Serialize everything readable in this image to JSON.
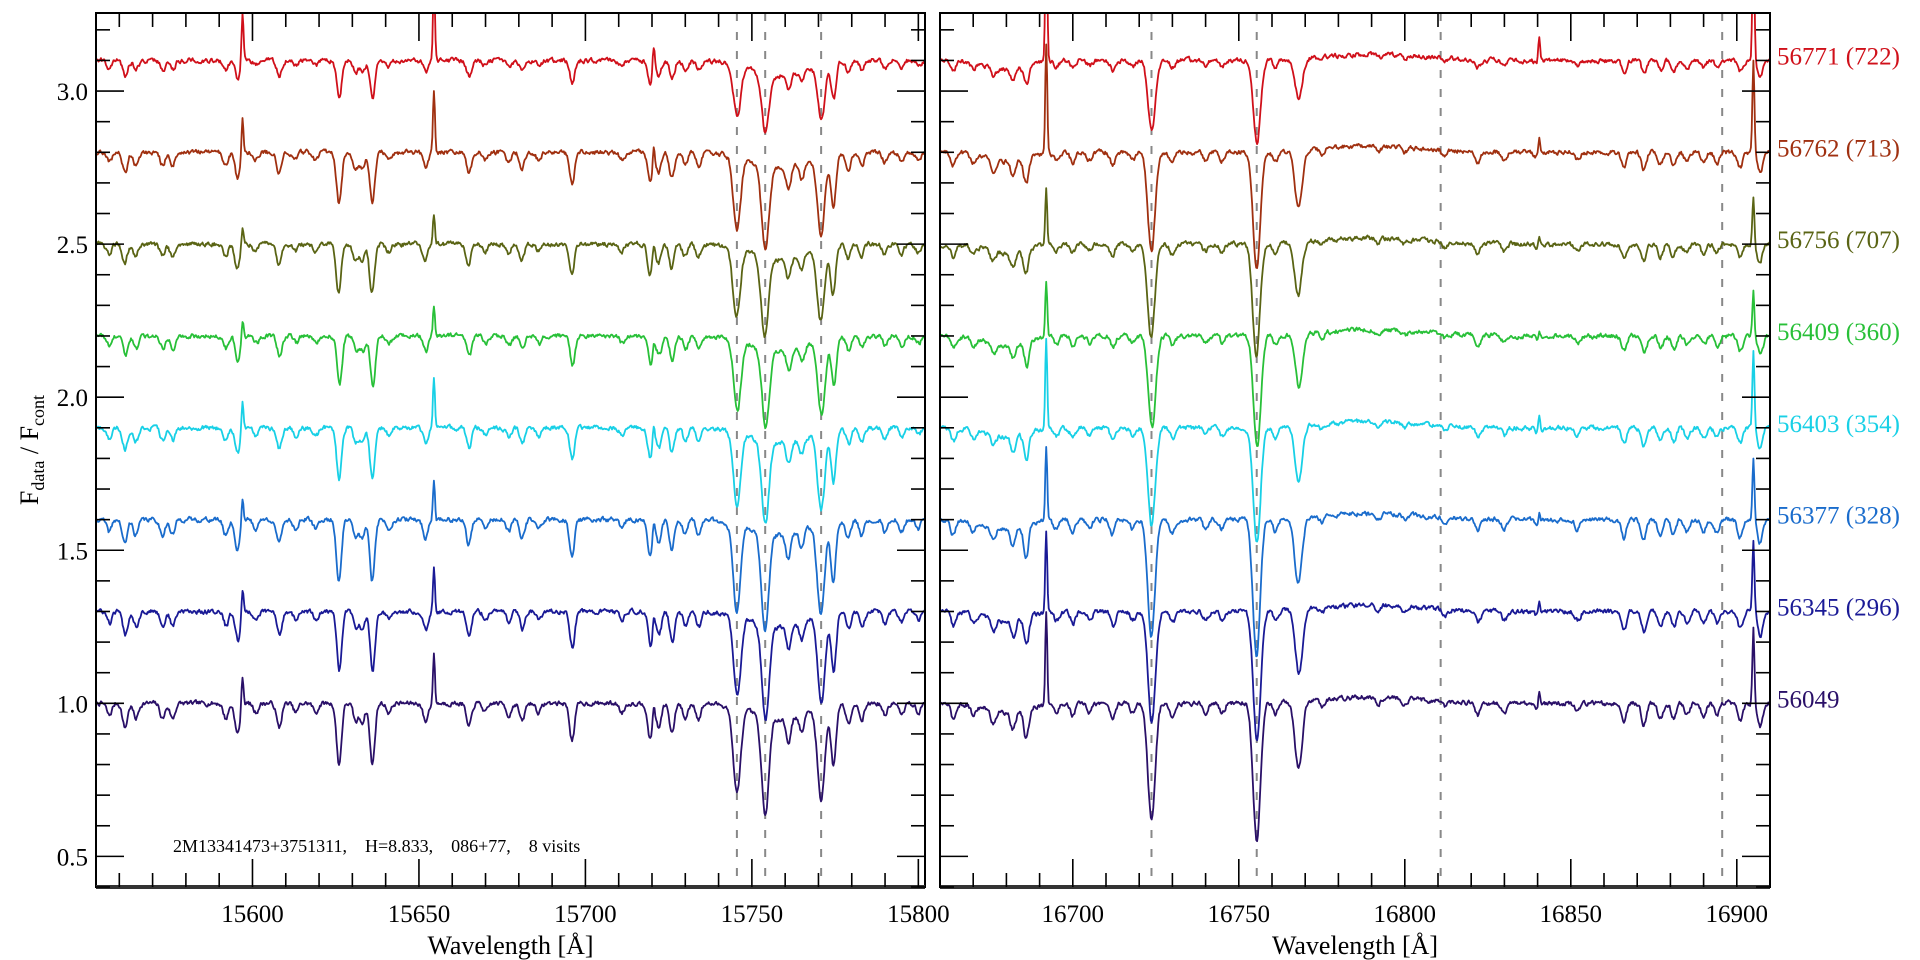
{
  "chart_data": {
    "type": "line",
    "ylabel_main": "F",
    "ylabel_sub1": "data",
    "ylabel_sep": " / F",
    "ylabel_sub2": "cont",
    "annotation": "2M13341473+3751311,    H=8.833,    086+77,    8 visits",
    "ylim": [
      0.4,
      3.255
    ],
    "y_ticks": [
      0.5,
      1.0,
      1.5,
      2.0,
      2.5,
      3.0
    ],
    "y_tick_labels": [
      "0.5",
      "1.0",
      "1.5",
      "2.0",
      "2.5",
      "3.0"
    ],
    "panels": [
      {
        "xlabel": "Wavelength [Å]",
        "xlim": [
          15553,
          15802
        ],
        "x_ticks": [
          15600,
          15650,
          15700,
          15750,
          15800
        ],
        "x_tick_labels": [
          "15600",
          "15650",
          "15700",
          "15750",
          "15800"
        ],
        "dashed_lines": [
          15745.5,
          15754,
          15770.8
        ],
        "absorption_lines": [
          [
            15557,
            0.04
          ],
          [
            15561.7,
            0.08
          ],
          [
            15565,
            0.05
          ],
          [
            15573,
            0.05
          ],
          [
            15576,
            0.05
          ],
          [
            15592,
            0.05
          ],
          [
            15595.5,
            0.1
          ],
          [
            15601,
            0.03
          ],
          [
            15608,
            0.08
          ],
          [
            15613,
            0.03
          ],
          [
            15619,
            0.03
          ],
          [
            15626,
            0.2
          ],
          [
            15631,
            0.06
          ],
          [
            15633,
            0.06
          ],
          [
            15636,
            0.2
          ],
          [
            15641,
            0.03
          ],
          [
            15652,
            0.06
          ],
          [
            15665,
            0.08
          ],
          [
            15670,
            0.03
          ],
          [
            15677,
            0.04
          ],
          [
            15681,
            0.06
          ],
          [
            15686,
            0.03
          ],
          [
            15696,
            0.12
          ],
          [
            15711,
            0.03
          ],
          [
            15719.5,
            0.12
          ],
          [
            15722,
            0.08
          ],
          [
            15726,
            0.1
          ],
          [
            15730,
            0.05
          ],
          [
            15734,
            0.05
          ],
          [
            15745.5,
            0.28
          ],
          [
            15754,
            0.32
          ],
          [
            15761,
            0.08
          ],
          [
            15765,
            0.06
          ],
          [
            15770.8,
            0.3
          ],
          [
            15774.5,
            0.2
          ],
          [
            15779,
            0.06
          ],
          [
            15783,
            0.05
          ],
          [
            15790,
            0.04
          ],
          [
            15795,
            0.04
          ],
          [
            15800,
            0.03
          ]
        ],
        "broad_features": [
          [
            15758,
            -0.05,
            8
          ]
        ],
        "emission_lines": [
          [
            15597,
            0.1
          ],
          [
            15654.5,
            0.16
          ],
          [
            15720.5,
            0.05
          ]
        ]
      },
      {
        "xlabel": "Wavelength [Å]",
        "xlim": [
          16660,
          16910
        ],
        "x_ticks": [
          16700,
          16750,
          16800,
          16850,
          16900
        ],
        "x_tick_labels": [
          "16700",
          "16750",
          "16800",
          "16850",
          "16900"
        ],
        "dashed_lines": [
          16723.7,
          16755.4,
          16810.8,
          16895.6
        ],
        "absorption_lines": [
          [
            16664,
            0.05
          ],
          [
            16670,
            0.03
          ],
          [
            16676,
            0.04
          ],
          [
            16682,
            0.06
          ],
          [
            16686,
            0.1
          ],
          [
            16695,
            0.03
          ],
          [
            16700,
            0.04
          ],
          [
            16705,
            0.03
          ],
          [
            16712,
            0.05
          ],
          [
            16718,
            0.03
          ],
          [
            16723.7,
            0.38
          ],
          [
            16730,
            0.04
          ],
          [
            16740,
            0.03
          ],
          [
            16745,
            0.03
          ],
          [
            16755.4,
            0.45
          ],
          [
            16761,
            0.04
          ],
          [
            16768,
            0.22
          ],
          [
            16775,
            0.02
          ],
          [
            16792,
            0.02
          ],
          [
            16800,
            0.02
          ],
          [
            16812,
            0.02
          ],
          [
            16822,
            0.04
          ],
          [
            16830,
            0.03
          ],
          [
            16840,
            0.02
          ],
          [
            16852,
            0.03
          ],
          [
            16866,
            0.06
          ],
          [
            16872,
            0.07
          ],
          [
            16877,
            0.05
          ],
          [
            16881,
            0.05
          ],
          [
            16885,
            0.04
          ],
          [
            16890,
            0.04
          ],
          [
            16894,
            0.04
          ],
          [
            16901,
            0.06
          ],
          [
            16907,
            0.08
          ]
        ],
        "broad_features": [
          [
            16790,
            0.02,
            15
          ],
          [
            16680,
            -0.03,
            6
          ]
        ],
        "emission_lines": [
          [
            16692,
            0.3
          ],
          [
            16840.5,
            0.05
          ],
          [
            16905,
            0.25
          ]
        ]
      }
    ],
    "series": [
      {
        "name": "56049",
        "label": "56049",
        "offset": 1.0,
        "color": "#2a1068",
        "depth_scale": 1.0,
        "emission_scale": 1.0,
        "shift": 0.0
      },
      {
        "name": "56345",
        "label": "56345 (296)",
        "offset": 1.3,
        "color": "#1a1a96",
        "depth_scale": 0.95,
        "emission_scale": 0.9,
        "shift": 0.3
      },
      {
        "name": "56377",
        "label": "56377 (328)",
        "offset": 1.6,
        "color": "#1a6ccc",
        "depth_scale": 1.0,
        "emission_scale": 0.8,
        "shift": -0.2
      },
      {
        "name": "56403",
        "label": "56403 (354)",
        "offset": 1.9,
        "color": "#18d0e6",
        "depth_scale": 0.85,
        "emission_scale": 1.0,
        "shift": 0.1
      },
      {
        "name": "56409",
        "label": "56409 (360)",
        "offset": 2.2,
        "color": "#28c038",
        "depth_scale": 0.8,
        "emission_scale": 0.6,
        "shift": 0.5
      },
      {
        "name": "56756",
        "label": "56756 (707)",
        "offset": 2.5,
        "color": "#5a6414",
        "depth_scale": 0.8,
        "emission_scale": 0.6,
        "shift": -0.4
      },
      {
        "name": "56762",
        "label": "56762 (713)",
        "offset": 2.8,
        "color": "#a03010",
        "depth_scale": 0.85,
        "emission_scale": 1.2,
        "shift": 0.0
      },
      {
        "name": "56771",
        "label": "56771 (722)",
        "offset": 3.1,
        "color": "#d0101a",
        "depth_scale": 0.6,
        "emission_scale": 1.6,
        "shift": 0.2
      }
    ]
  }
}
